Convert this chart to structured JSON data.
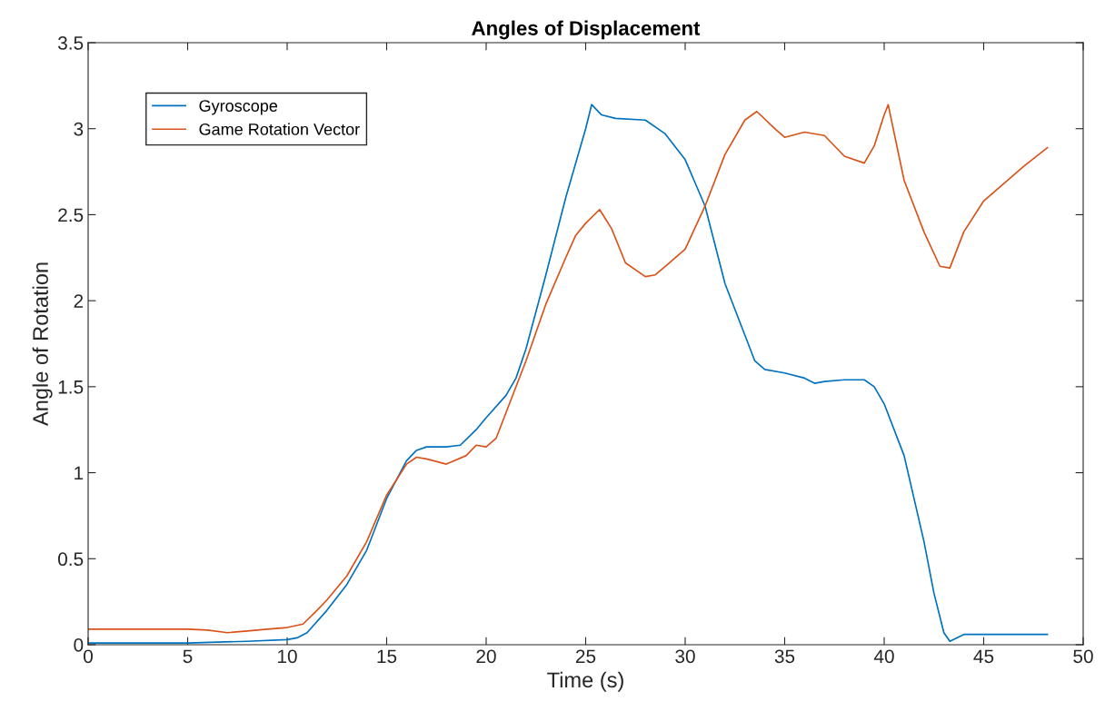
{
  "chart_data": {
    "type": "line",
    "title": "Angles of Displacement",
    "xlabel": "Time (s)",
    "ylabel": "Angle of Rotation",
    "xlim": [
      0,
      50
    ],
    "xticks": [
      0,
      5,
      10,
      15,
      20,
      25,
      30,
      35,
      40,
      45,
      50
    ],
    "ylim": [
      0,
      3.5
    ],
    "yticks": [
      0,
      0.5,
      1,
      1.5,
      2,
      2.5,
      3,
      3.5
    ],
    "grid": false,
    "legend": "top left",
    "marker": "none",
    "line_style": "solid",
    "series": [
      {
        "name": "Gyroscope",
        "color": "#0072bd",
        "x": [
          0,
          5,
          8,
          10,
          10.5,
          11,
          12,
          13,
          14,
          15,
          16,
          16.5,
          17,
          18,
          18.7,
          19.5,
          20,
          21,
          21.5,
          22,
          23,
          24,
          25,
          25.3,
          25.8,
          26.5,
          28,
          29,
          30,
          31,
          32,
          33,
          33.5,
          34,
          35,
          36,
          36.5,
          37,
          38,
          39,
          39.5,
          40,
          41,
          42,
          42.5,
          43,
          43.3,
          44,
          46,
          48.2
        ],
        "values": [
          0.01,
          0.01,
          0.02,
          0.03,
          0.04,
          0.07,
          0.2,
          0.35,
          0.55,
          0.85,
          1.07,
          1.13,
          1.15,
          1.15,
          1.16,
          1.25,
          1.32,
          1.45,
          1.55,
          1.72,
          2.15,
          2.6,
          3.0,
          3.14,
          3.08,
          3.06,
          3.05,
          2.97,
          2.82,
          2.55,
          2.1,
          1.8,
          1.65,
          1.6,
          1.58,
          1.55,
          1.52,
          1.53,
          1.54,
          1.54,
          1.5,
          1.4,
          1.1,
          0.6,
          0.3,
          0.07,
          0.02,
          0.06,
          0.06,
          0.06
        ]
      },
      {
        "name": "Game Rotation Vector",
        "color": "#d95319",
        "x": [
          0,
          5,
          6,
          7,
          8,
          9,
          10,
          10.8,
          11.5,
          12,
          13,
          14,
          15,
          16,
          16.5,
          17,
          18,
          19,
          19.5,
          20,
          20.5,
          21,
          22,
          23,
          24,
          24.5,
          25,
          25.7,
          26.3,
          27,
          28,
          28.5,
          29,
          30,
          31,
          32,
          33,
          33.6,
          34.5,
          35,
          36,
          37,
          38,
          39,
          39.5,
          40,
          40.2,
          41,
          42,
          42.8,
          43.3,
          44,
          45,
          46,
          47,
          48.2
        ],
        "values": [
          0.09,
          0.09,
          0.085,
          0.07,
          0.08,
          0.09,
          0.1,
          0.12,
          0.2,
          0.26,
          0.4,
          0.6,
          0.87,
          1.05,
          1.09,
          1.08,
          1.05,
          1.1,
          1.16,
          1.15,
          1.2,
          1.35,
          1.65,
          1.98,
          2.25,
          2.38,
          2.45,
          2.53,
          2.42,
          2.22,
          2.14,
          2.15,
          2.2,
          2.3,
          2.55,
          2.85,
          3.05,
          3.1,
          3.0,
          2.95,
          2.98,
          2.96,
          2.84,
          2.8,
          2.9,
          3.08,
          3.14,
          2.7,
          2.4,
          2.2,
          2.19,
          2.4,
          2.58,
          2.68,
          2.78,
          2.89
        ]
      }
    ]
  }
}
